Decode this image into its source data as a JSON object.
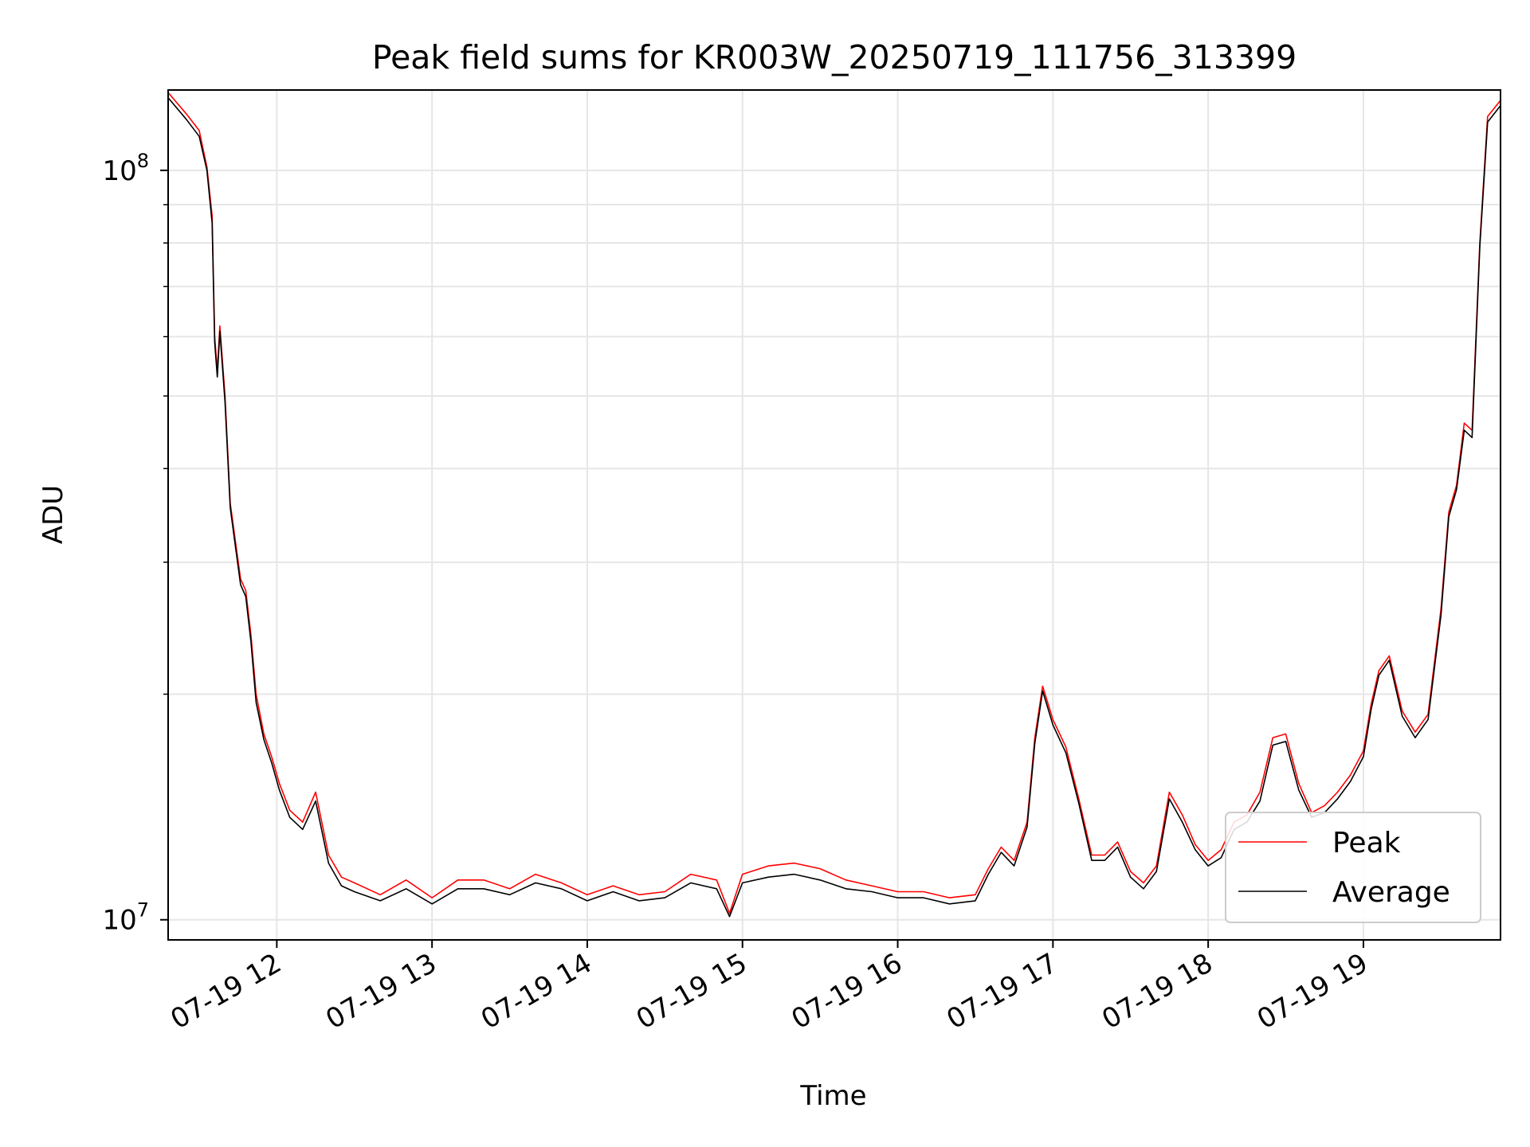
{
  "chart_data": {
    "type": "line",
    "title": "Peak field sums for KR003W_20250719_111756_313399",
    "xlabel": "Time",
    "ylabel": "ADU",
    "x_axis": {
      "type": "time",
      "start": "2025-07-19 11:18",
      "end": "2025-07-19 19:53",
      "tick_labels": [
        "07-19 12",
        "07-19 13",
        "07-19 14",
        "07-19 15",
        "07-19 16",
        "07-19 17",
        "07-19 18",
        "07-19 19"
      ],
      "tick_rotation_deg": 30
    },
    "y_axis": {
      "scale": "log",
      "range": [
        9400000,
        128000000
      ],
      "major_ticks": [
        {
          "value": 10000000,
          "base": "10",
          "exp": "7"
        },
        {
          "value": 100000000,
          "base": "10",
          "exp": "8"
        }
      ],
      "minor_ticks": [
        20000000,
        30000000,
        40000000,
        50000000,
        60000000,
        70000000,
        80000000,
        90000000
      ]
    },
    "grid": true,
    "legend": {
      "position": "lower right",
      "entries": [
        "Peak",
        "Average"
      ]
    },
    "series": [
      {
        "name": "Peak",
        "color": "#ff0000",
        "x": [
          "2025-07-19 11:18",
          "2025-07-19 11:25",
          "2025-07-19 11:30",
          "2025-07-19 11:33",
          "2025-07-19 11:35",
          "2025-07-19 11:36",
          "2025-07-19 11:37",
          "2025-07-19 11:38",
          "2025-07-19 11:40",
          "2025-07-19 11:42",
          "2025-07-19 11:44",
          "2025-07-19 11:46",
          "2025-07-19 11:48",
          "2025-07-19 11:50",
          "2025-07-19 11:52",
          "2025-07-19 11:55",
          "2025-07-19 11:58",
          "2025-07-19 12:01",
          "2025-07-19 12:05",
          "2025-07-19 12:10",
          "2025-07-19 12:15",
          "2025-07-19 12:20",
          "2025-07-19 12:25",
          "2025-07-19 12:30",
          "2025-07-19 12:40",
          "2025-07-19 12:50",
          "2025-07-19 13:00",
          "2025-07-19 13:10",
          "2025-07-19 13:20",
          "2025-07-19 13:30",
          "2025-07-19 13:40",
          "2025-07-19 13:50",
          "2025-07-19 14:00",
          "2025-07-19 14:10",
          "2025-07-19 14:20",
          "2025-07-19 14:30",
          "2025-07-19 14:40",
          "2025-07-19 14:50",
          "2025-07-19 14:55",
          "2025-07-19 15:00",
          "2025-07-19 15:10",
          "2025-07-19 15:20",
          "2025-07-19 15:30",
          "2025-07-19 15:40",
          "2025-07-19 15:50",
          "2025-07-19 16:00",
          "2025-07-19 16:10",
          "2025-07-19 16:20",
          "2025-07-19 16:30",
          "2025-07-19 16:35",
          "2025-07-19 16:40",
          "2025-07-19 16:45",
          "2025-07-19 16:50",
          "2025-07-19 16:53",
          "2025-07-19 16:56",
          "2025-07-19 17:00",
          "2025-07-19 17:05",
          "2025-07-19 17:10",
          "2025-07-19 17:15",
          "2025-07-19 17:20",
          "2025-07-19 17:25",
          "2025-07-19 17:30",
          "2025-07-19 17:35",
          "2025-07-19 17:40",
          "2025-07-19 17:45",
          "2025-07-19 17:50",
          "2025-07-19 17:55",
          "2025-07-19 18:00",
          "2025-07-19 18:05",
          "2025-07-19 18:10",
          "2025-07-19 18:15",
          "2025-07-19 18:20",
          "2025-07-19 18:25",
          "2025-07-19 18:30",
          "2025-07-19 18:35",
          "2025-07-19 18:40",
          "2025-07-19 18:45",
          "2025-07-19 18:50",
          "2025-07-19 18:55",
          "2025-07-19 19:00",
          "2025-07-19 19:03",
          "2025-07-19 19:06",
          "2025-07-19 19:10",
          "2025-07-19 19:15",
          "2025-07-19 19:20",
          "2025-07-19 19:25",
          "2025-07-19 19:30",
          "2025-07-19 19:33",
          "2025-07-19 19:36",
          "2025-07-19 19:39",
          "2025-07-19 19:42",
          "2025-07-19 19:45",
          "2025-07-19 19:48",
          "2025-07-19 19:53"
        ],
        "y": [
          127000000,
          119000000,
          113000000,
          101000000,
          87000000,
          60000000,
          54000000,
          62000000,
          50000000,
          36000000,
          32000000,
          28500000,
          27500000,
          24000000,
          20000000,
          17700000,
          16500000,
          15200000,
          14000000,
          13500000,
          14800000,
          12200000,
          11400000,
          11200000,
          10800000,
          11300000,
          10700000,
          11300000,
          11300000,
          11000000,
          11500000,
          11200000,
          10800000,
          11100000,
          10800000,
          10900000,
          11500000,
          11300000,
          10200000,
          11500000,
          11800000,
          11900000,
          11700000,
          11300000,
          11100000,
          10900000,
          10900000,
          10700000,
          10800000,
          11700000,
          12500000,
          12000000,
          13500000,
          17500000,
          20500000,
          18500000,
          17000000,
          14500000,
          12200000,
          12200000,
          12700000,
          11600000,
          11200000,
          11800000,
          14800000,
          13800000,
          12600000,
          12000000,
          12400000,
          13500000,
          13800000,
          14800000,
          17500000,
          17700000,
          15200000,
          13900000,
          14200000,
          14800000,
          15600000,
          16800000,
          19400000,
          21500000,
          22500000,
          19000000,
          17800000,
          18800000,
          26000000,
          35000000,
          38000000,
          46000000,
          45000000,
          80000000,
          118000000,
          124000000
        ]
      },
      {
        "name": "Average",
        "color": "#000000",
        "x": [
          "2025-07-19 11:18",
          "2025-07-19 11:25",
          "2025-07-19 11:30",
          "2025-07-19 11:33",
          "2025-07-19 11:35",
          "2025-07-19 11:36",
          "2025-07-19 11:37",
          "2025-07-19 11:38",
          "2025-07-19 11:40",
          "2025-07-19 11:42",
          "2025-07-19 11:44",
          "2025-07-19 11:46",
          "2025-07-19 11:48",
          "2025-07-19 11:50",
          "2025-07-19 11:52",
          "2025-07-19 11:55",
          "2025-07-19 11:58",
          "2025-07-19 12:01",
          "2025-07-19 12:05",
          "2025-07-19 12:10",
          "2025-07-19 12:15",
          "2025-07-19 12:20",
          "2025-07-19 12:25",
          "2025-07-19 12:30",
          "2025-07-19 12:40",
          "2025-07-19 12:50",
          "2025-07-19 13:00",
          "2025-07-19 13:10",
          "2025-07-19 13:20",
          "2025-07-19 13:30",
          "2025-07-19 13:40",
          "2025-07-19 13:50",
          "2025-07-19 14:00",
          "2025-07-19 14:10",
          "2025-07-19 14:20",
          "2025-07-19 14:30",
          "2025-07-19 14:40",
          "2025-07-19 14:50",
          "2025-07-19 14:55",
          "2025-07-19 15:00",
          "2025-07-19 15:10",
          "2025-07-19 15:20",
          "2025-07-19 15:30",
          "2025-07-19 15:40",
          "2025-07-19 15:50",
          "2025-07-19 16:00",
          "2025-07-19 16:10",
          "2025-07-19 16:20",
          "2025-07-19 16:30",
          "2025-07-19 16:35",
          "2025-07-19 16:40",
          "2025-07-19 16:45",
          "2025-07-19 16:50",
          "2025-07-19 16:53",
          "2025-07-19 16:56",
          "2025-07-19 17:00",
          "2025-07-19 17:05",
          "2025-07-19 17:10",
          "2025-07-19 17:15",
          "2025-07-19 17:20",
          "2025-07-19 17:25",
          "2025-07-19 17:30",
          "2025-07-19 17:35",
          "2025-07-19 17:40",
          "2025-07-19 17:45",
          "2025-07-19 17:50",
          "2025-07-19 17:55",
          "2025-07-19 18:00",
          "2025-07-19 18:05",
          "2025-07-19 18:10",
          "2025-07-19 18:15",
          "2025-07-19 18:20",
          "2025-07-19 18:25",
          "2025-07-19 18:30",
          "2025-07-19 18:35",
          "2025-07-19 18:40",
          "2025-07-19 18:45",
          "2025-07-19 18:50",
          "2025-07-19 18:55",
          "2025-07-19 19:00",
          "2025-07-19 19:03",
          "2025-07-19 19:06",
          "2025-07-19 19:10",
          "2025-07-19 19:15",
          "2025-07-19 19:20",
          "2025-07-19 19:25",
          "2025-07-19 19:30",
          "2025-07-19 19:33",
          "2025-07-19 19:36",
          "2025-07-19 19:39",
          "2025-07-19 19:42",
          "2025-07-19 19:45",
          "2025-07-19 19:48",
          "2025-07-19 19:53"
        ],
        "y": [
          125000000,
          117000000,
          111000000,
          100000000,
          85000000,
          59000000,
          53000000,
          61000000,
          49000000,
          35500000,
          31500000,
          28000000,
          27000000,
          23500000,
          19500000,
          17400000,
          16200000,
          14900000,
          13700000,
          13200000,
          14400000,
          11900000,
          11100000,
          10900000,
          10600000,
          11000000,
          10500000,
          11000000,
          11000000,
          10800000,
          11200000,
          11000000,
          10600000,
          10900000,
          10600000,
          10700000,
          11200000,
          11000000,
          10100000,
          11200000,
          11400000,
          11500000,
          11300000,
          11000000,
          10900000,
          10700000,
          10700000,
          10500000,
          10600000,
          11500000,
          12300000,
          11800000,
          13300000,
          17200000,
          20200000,
          18200000,
          16700000,
          14300000,
          12000000,
          12000000,
          12500000,
          11400000,
          11000000,
          11600000,
          14500000,
          13500000,
          12400000,
          11800000,
          12100000,
          13200000,
          13500000,
          14400000,
          17100000,
          17300000,
          14900000,
          13700000,
          13900000,
          14500000,
          15300000,
          16500000,
          19100000,
          21200000,
          22200000,
          18700000,
          17500000,
          18500000,
          25500000,
          34500000,
          37500000,
          45000000,
          44000000,
          79000000,
          116000000,
          122000000
        ]
      }
    ]
  }
}
